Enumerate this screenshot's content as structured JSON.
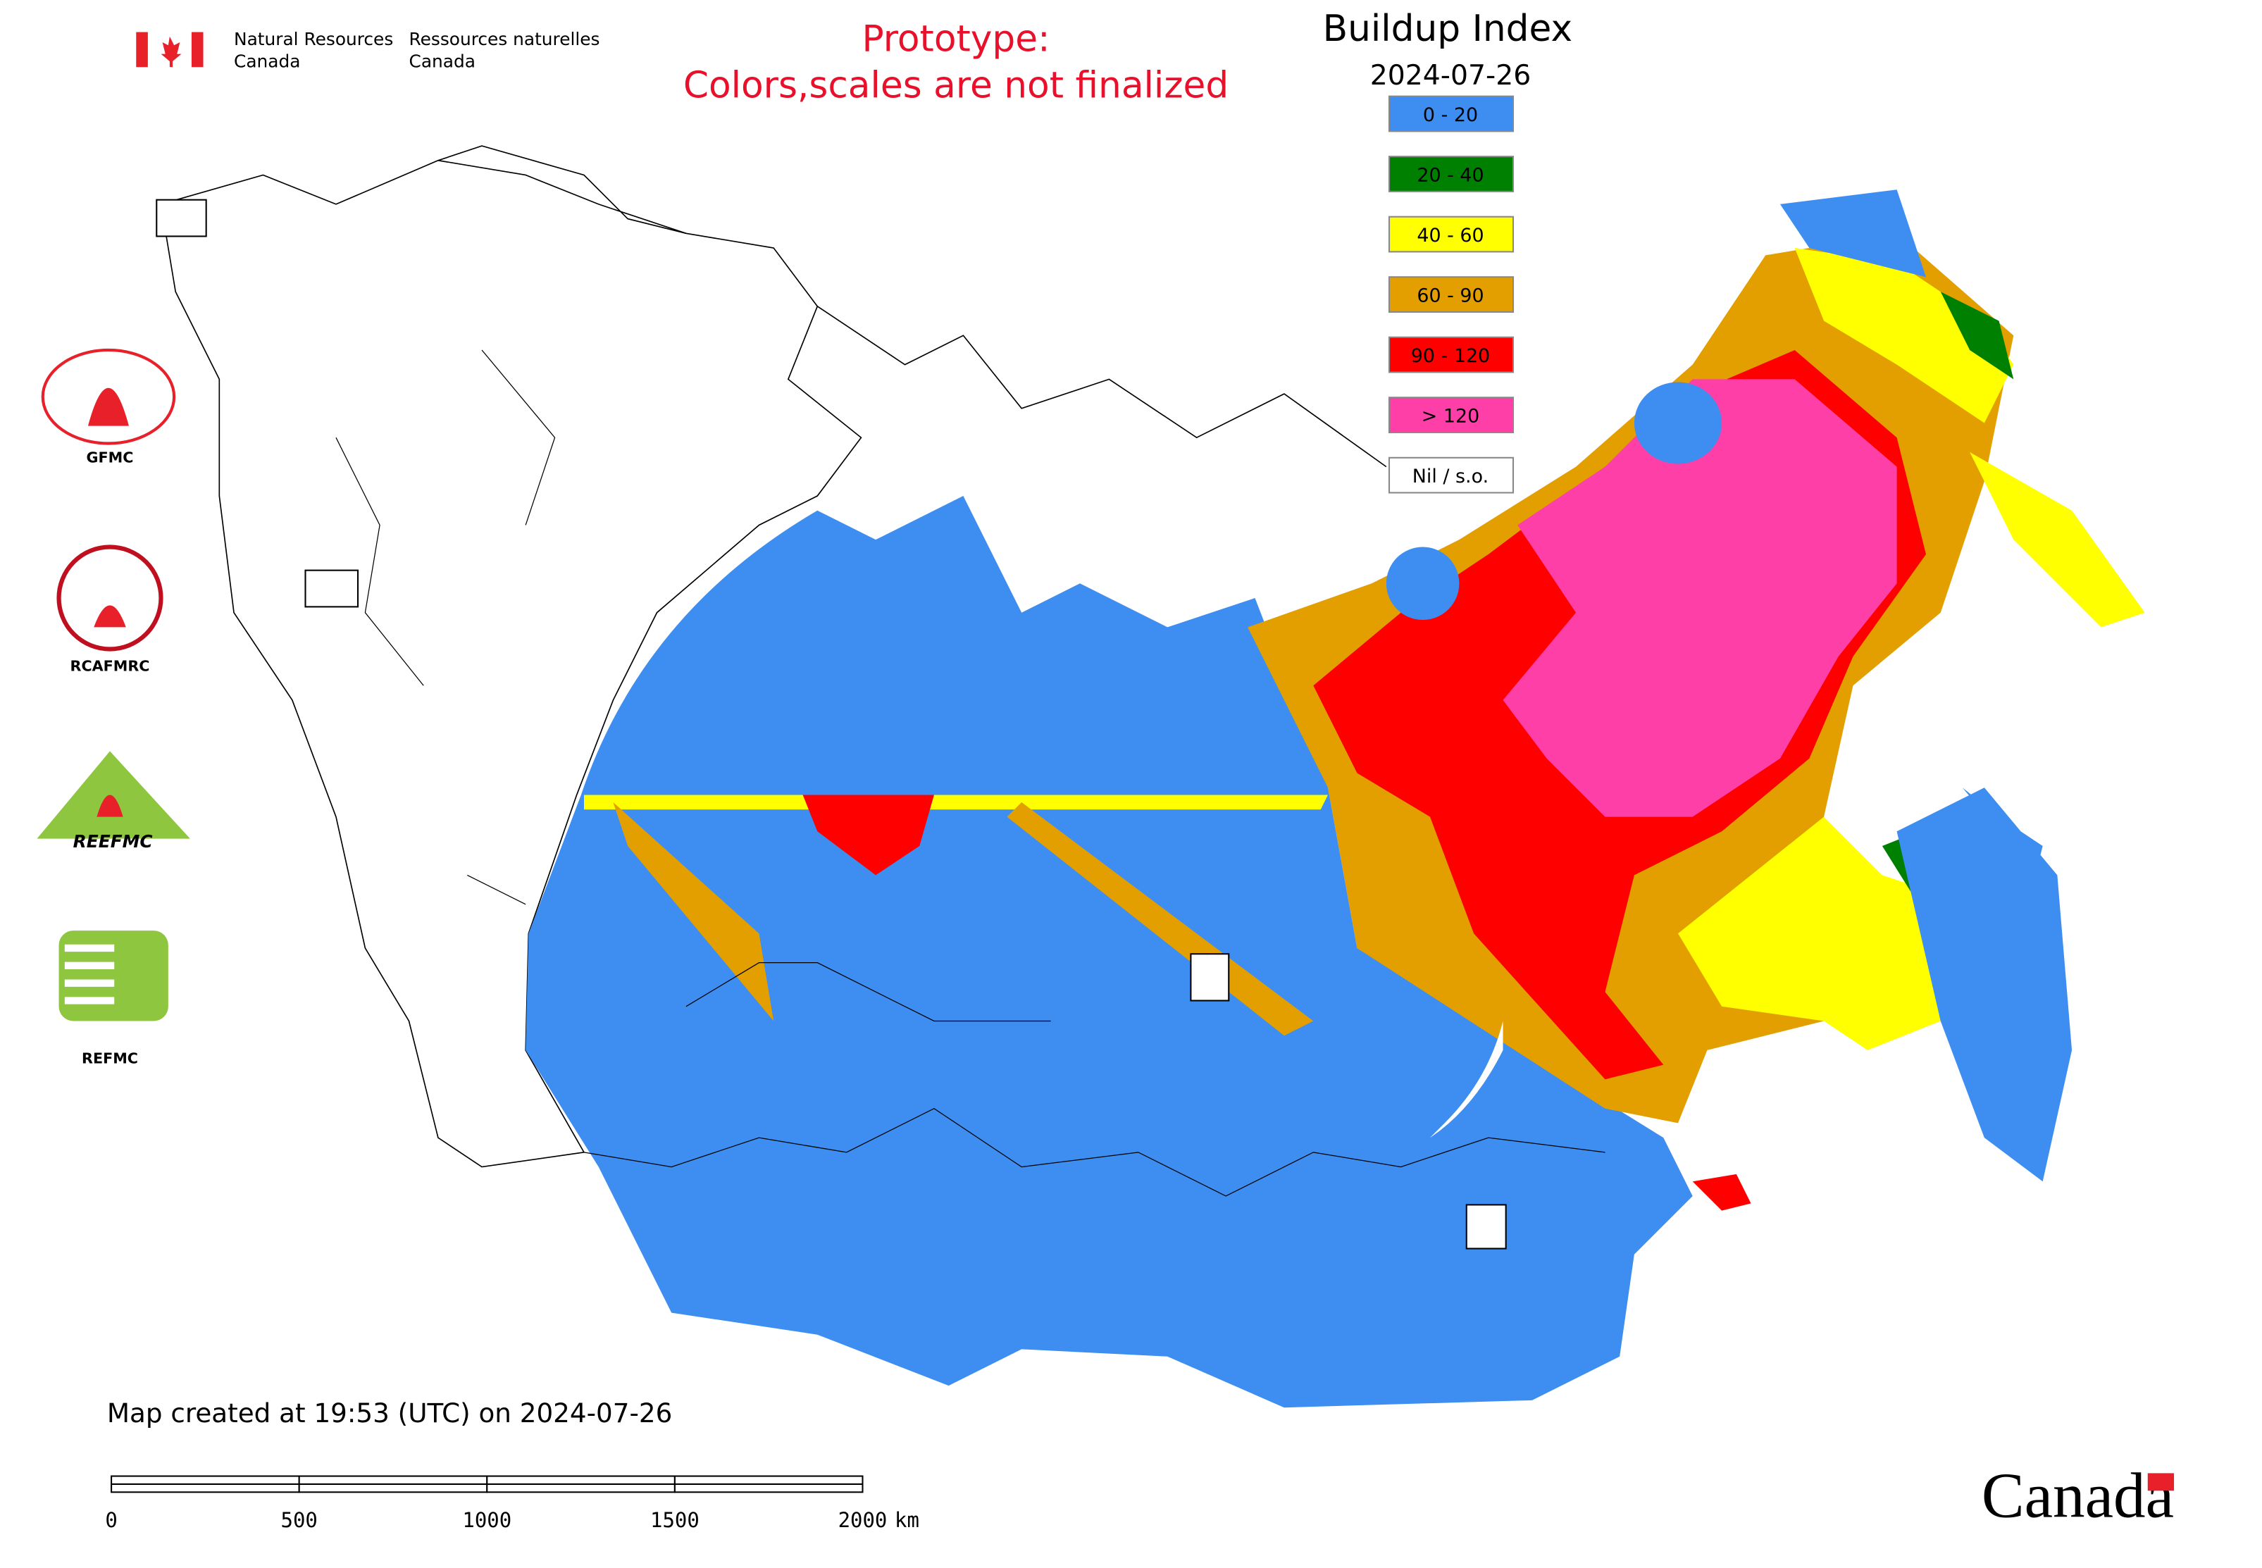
{
  "header": {
    "agency_en_1": "Natural Resources",
    "agency_en_2": "Canada",
    "agency_fr_1": "Ressources naturelles",
    "agency_fr_2": "Canada"
  },
  "notice": [
    "Prototype:",
    "Colors,scales are not finalized"
  ],
  "title": "Buildup Index",
  "date": "2024-07-26",
  "legend": [
    {
      "label": "0 - 20",
      "color": "#3d8ef0"
    },
    {
      "label": "20 - 40",
      "color": "#008000"
    },
    {
      "label": "40 - 60",
      "color": "#ffff00"
    },
    {
      "label": "60 - 90",
      "color": "#e39f00"
    },
    {
      "label": "90 - 120",
      "color": "#ff0000"
    },
    {
      "label": "> 120",
      "color": "#ff3fa8"
    },
    {
      "label": "Nil / s.o.",
      "color": "#ffffff"
    }
  ],
  "logos": [
    "GFMC",
    "RCAFMRC",
    "REEFMC",
    "REFMC"
  ],
  "footer": "Map created at 19:53 (UTC) on 2024-07-26",
  "scale_bar": {
    "ticks": [
      0,
      500,
      1000,
      1500,
      2000
    ],
    "unit": "km"
  },
  "wordmark": "Canada"
}
